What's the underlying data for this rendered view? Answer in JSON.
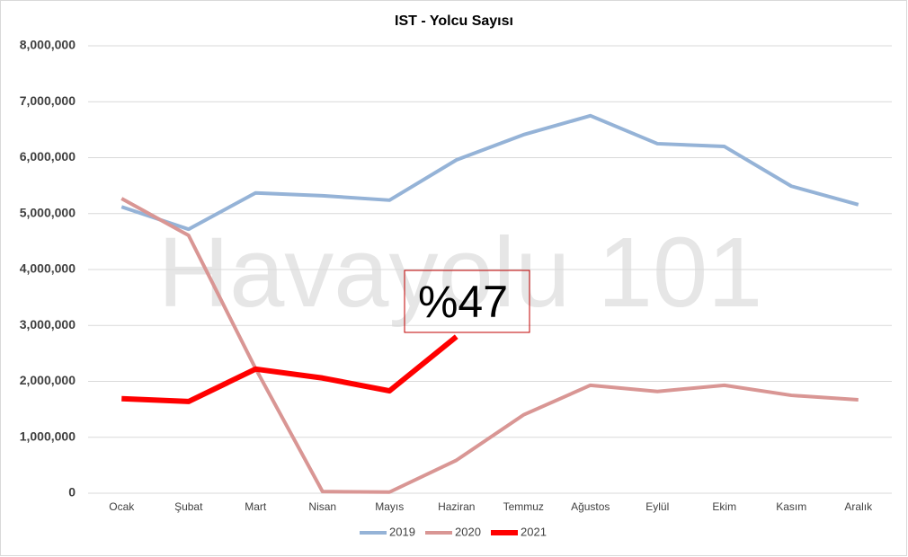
{
  "chart_data": {
    "type": "line",
    "title": "IST - Yolcu Sayısı",
    "watermark": "Havayolu 101",
    "annotation": "%47",
    "categories": [
      "Ocak",
      "Şubat",
      "Mart",
      "Nisan",
      "Mayıs",
      "Haziran",
      "Temmuz",
      "Ağustos",
      "Eylül",
      "Ekim",
      "Kasım",
      "Aralık"
    ],
    "series": [
      {
        "name": "2019",
        "color": "#95b3d7",
        "width": 4,
        "values": [
          5120000,
          4720000,
          5370000,
          5320000,
          5240000,
          5960000,
          6410000,
          6750000,
          6250000,
          6200000,
          5490000,
          5160000
        ]
      },
      {
        "name": "2020",
        "color": "#d99694",
        "width": 4,
        "values": [
          5270000,
          4610000,
          2230000,
          30000,
          20000,
          590000,
          1400000,
          1930000,
          1820000,
          1930000,
          1750000,
          1670000
        ]
      },
      {
        "name": "2021",
        "color": "#ff0000",
        "width": 6,
        "values": [
          1690000,
          1640000,
          2220000,
          2060000,
          1830000,
          2800000,
          null,
          null,
          null,
          null,
          null,
          null
        ]
      }
    ],
    "ylim": [
      0,
      8000000
    ],
    "yticks": [
      0,
      {
        "value": 1000000,
        "label": "1,000,000"
      },
      {
        "value": 2000000,
        "label": "2,000,000"
      },
      {
        "value": 3000000,
        "label": "3,000,000"
      },
      {
        "value": 4000000,
        "label": "4,000,000"
      },
      {
        "value": 5000000,
        "label": "5,000,000"
      },
      {
        "value": 6000000,
        "label": "6,000,000"
      },
      {
        "value": 7000000,
        "label": "7,000,000"
      },
      {
        "value": 8000000,
        "label": "8,000,000"
      }
    ],
    "grid": true,
    "legend": "bottom"
  }
}
